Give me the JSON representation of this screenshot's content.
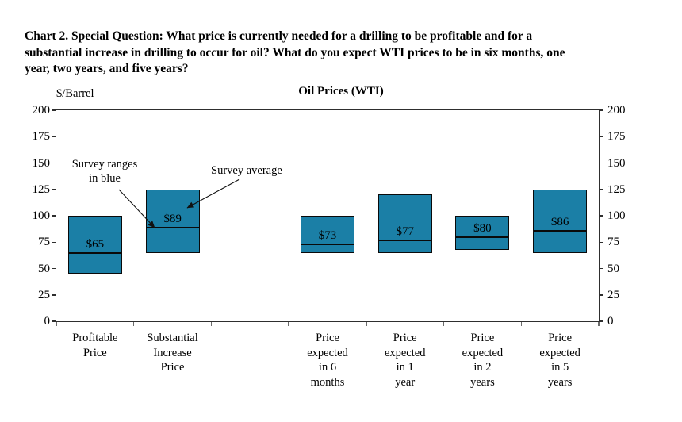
{
  "page": {
    "heading": "Chart 2. Special Question: What price is currently needed for a drilling to be profitable and for a\nsubstantial increase in drilling to occur for oil? What do you expect WTI prices to be in six months, one\nyear, two years, and five years?"
  },
  "chart_data": {
    "type": "bar",
    "variant": "floating-range-bars-with-average-line",
    "title": "Oil Prices (WTI)",
    "unit_label": "$/Barrel",
    "ylim": [
      0,
      200
    ],
    "yticks": [
      0,
      25,
      50,
      75,
      100,
      125,
      150,
      175,
      200
    ],
    "grid": false,
    "slots": 7,
    "empty_slot_index": 2,
    "bar_color": "#1b7fa6",
    "bar_border_color": "#0a0a0a",
    "annotations": {
      "ranges": "Survey ranges\nin blue",
      "average": "Survey average"
    },
    "bars": [
      {
        "slot": 0,
        "label": "Profitable\nPrice",
        "range_low": 45,
        "range_high": 100,
        "average": 65,
        "average_label": "$65"
      },
      {
        "slot": 1,
        "label": "Substantial\nIncrease\nPrice",
        "range_low": 65,
        "range_high": 125,
        "average": 89,
        "average_label": "$89"
      },
      {
        "slot": 3,
        "label": "Price\nexpected\nin 6\nmonths",
        "range_low": 65,
        "range_high": 100,
        "average": 73,
        "average_label": "$73"
      },
      {
        "slot": 4,
        "label": "Price\nexpected\nin 1\nyear",
        "range_low": 65,
        "range_high": 120,
        "average": 77,
        "average_label": "$77"
      },
      {
        "slot": 5,
        "label": "Price\nexpected\nin 2\nyears",
        "range_low": 68,
        "range_high": 100,
        "average": 80,
        "average_label": "$80"
      },
      {
        "slot": 6,
        "label": "Price\nexpected\nin 5\nyears",
        "range_low": 65,
        "range_high": 125,
        "average": 86,
        "average_label": "$86"
      }
    ]
  }
}
